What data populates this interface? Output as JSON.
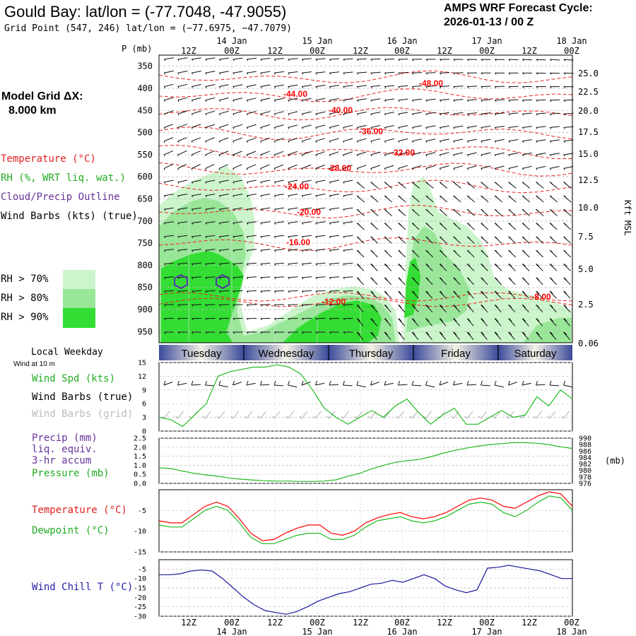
{
  "header": {
    "title": "Gould Bay:  lat/lon = (-77.7048, -47.9055)",
    "subtitle": "Grid Point (547, 246) lat/lon = (−77.6975, −47.7079)",
    "cycle_line1": "AMPS WRF Forecast Cycle:",
    "cycle_line2": "2026-01-13 / 00  Z"
  },
  "left_panel": {
    "grid_label": "Model Grid ΔX:",
    "grid_value": "8.000 km",
    "legend": [
      {
        "text": "Temperature (°C)",
        "color": "#e02020"
      },
      {
        "text": "RH (%, WRT liq. wat.)",
        "color": "#22aa22"
      },
      {
        "text": "Cloud/Precip Outline",
        "color": "#663399"
      },
      {
        "text": "Wind Barbs (kts) (true)",
        "color": "#000000"
      }
    ],
    "rh_legend": [
      {
        "text": "RH > 70%",
        "color": "#ccf5cc"
      },
      {
        "text": "RH > 80%",
        "color": "#99e699"
      },
      {
        "text": "RH > 90%",
        "color": "#33dd33"
      }
    ],
    "weekday_label": "Local Weekday",
    "wind_at": "Wind at 10 m",
    "wind_legend": [
      {
        "text": "Wind Spd (kts)",
        "color": "#22aa22"
      },
      {
        "text": "Wind Barbs (true)",
        "color": "#000000"
      },
      {
        "text": "Wind Barbs (grid)",
        "color": "#bbbbbb"
      }
    ],
    "precip_legend": [
      {
        "text": "Precip (mm)",
        "color": "#663399"
      },
      {
        "text": "liq. equiv.",
        "color": "#663399"
      },
      {
        "text": "3-hr accum",
        "color": "#663399"
      },
      {
        "text": "Pressure (mb)",
        "color": "#22aa22"
      }
    ],
    "temp_legend": [
      {
        "text": "Temperature (°C)",
        "color": "#e02020"
      },
      {
        "text": "Dewpoint (°C)",
        "color": "#22aa22"
      }
    ],
    "chill_legend": [
      {
        "text": "Wind Chill T (°C)",
        "color": "#2222aa"
      }
    ]
  },
  "time_axis": {
    "tick_labels": [
      "12Z",
      "00Z",
      "12Z",
      "00Z",
      "12Z",
      "00Z",
      "12Z",
      "00Z",
      "12Z",
      "00Z"
    ],
    "date_labels": [
      "14 Jan",
      "15 Jan",
      "16 Jan",
      "17 Jan",
      "18 Jan"
    ]
  },
  "weekdays": [
    "Tuesday",
    "Wednesday",
    "Thursday",
    "Friday",
    "Saturday"
  ],
  "colors": {
    "temp": "#ff0000",
    "green": "#22bb22",
    "blue": "#1a1aa0",
    "purple": "#663399",
    "rh70": "#ccf5cc",
    "rh80": "#99e699",
    "rh90": "#33dd33"
  },
  "chart_data": [
    {
      "type": "heatmap",
      "ylabel": "P (mb)",
      "y2label": "Kft MSL",
      "pressure_ticks": [
        350,
        400,
        450,
        500,
        550,
        600,
        650,
        700,
        750,
        800,
        850,
        900,
        950
      ],
      "height_ticks": [
        "25.0",
        "22.5",
        "20.0",
        "17.5",
        "15.0",
        "12.5",
        "10.0",
        "7.5",
        "5.0",
        "2.5",
        "0.06"
      ],
      "isotherm_labels": [
        "-48.00",
        "-44.00",
        "-40.00",
        "-36.00",
        "-32.00",
        "-28.00",
        "-24.00",
        "-20.00",
        "-16.00",
        "-12.00",
        "-8.00"
      ]
    },
    {
      "type": "line",
      "name": "Wind Spd (kts)",
      "yticks": [
        0,
        3,
        6,
        9,
        12,
        15
      ],
      "ylim": [
        0,
        15
      ],
      "values": [
        3,
        2.5,
        1,
        3.5,
        6,
        12,
        13,
        13.5,
        14,
        14,
        14.5,
        14,
        12.5,
        9,
        5,
        3,
        1.5,
        3,
        4.5,
        3,
        5.5,
        7,
        4,
        1.5,
        3.5,
        5,
        1.5,
        1.5,
        3,
        4.5,
        3,
        3.5,
        7.5,
        5.5,
        9,
        7
      ]
    },
    {
      "type": "line",
      "name": "Pressure (mb)",
      "y2ticks": [
        990,
        988,
        986,
        984,
        982,
        980,
        978,
        976
      ],
      "y2lim": [
        976,
        990
      ],
      "yticks": [
        "2.5",
        "2.0",
        "1.5",
        "1.0",
        "0.5",
        "0.0"
      ],
      "ylim": [
        0,
        2.5
      ],
      "values": [
        980.8,
        980.6,
        979.8,
        979.1,
        978.6,
        978.2,
        977.6,
        977.3,
        977.0,
        976.8,
        976.7,
        976.7,
        976.6,
        976.6,
        976.7,
        977.1,
        978.2,
        979.1,
        980.5,
        981.6,
        982.5,
        983.0,
        983.4,
        984.2,
        985.3,
        986.2,
        986.9,
        987.5,
        988.0,
        988.3,
        988.6,
        988.6,
        988.4,
        988.0,
        987.3,
        986.8
      ]
    },
    {
      "type": "line",
      "yticks": [
        -5,
        -10,
        -15
      ],
      "ylim": [
        -15,
        0
      ],
      "series": [
        {
          "name": "Temperature (°C)",
          "values": [
            -7.5,
            -8,
            -8,
            -6,
            -4,
            -3,
            -4,
            -7,
            -10.5,
            -12.3,
            -12,
            -10.5,
            -9.3,
            -8.5,
            -8.5,
            -10.5,
            -11,
            -10,
            -8,
            -6.8,
            -6,
            -5.5,
            -6.5,
            -7,
            -6.5,
            -5.5,
            -4,
            -2.5,
            -2,
            -2.5,
            -4,
            -4.5,
            -3,
            -1.5,
            -0.5,
            -1,
            -4
          ]
        },
        {
          "name": "Dewpoint (°C)",
          "values": [
            -8.5,
            -9,
            -9,
            -7,
            -5,
            -4,
            -5,
            -8,
            -11.5,
            -13,
            -13,
            -12,
            -11,
            -10.5,
            -10.5,
            -12,
            -12,
            -11,
            -9,
            -7.5,
            -7,
            -6.5,
            -7.5,
            -8,
            -7.5,
            -6.5,
            -5,
            -3.5,
            -3,
            -3.5,
            -5.5,
            -6.5,
            -5,
            -3,
            -1.5,
            -2,
            -5
          ]
        }
      ]
    },
    {
      "type": "line",
      "name": "Wind Chill T (°C)",
      "yticks": [
        -5,
        -10,
        -15,
        -20,
        -25,
        -30
      ],
      "ylim": [
        -30,
        0
      ],
      "values": [
        -8,
        -8,
        -7.5,
        -6,
        -5.5,
        -6,
        -10,
        -15,
        -20,
        -24,
        -27,
        -28,
        -29,
        -27.5,
        -25,
        -22,
        -20,
        -18,
        -17,
        -15,
        -13,
        -12.5,
        -11,
        -12,
        -10,
        -8,
        -10,
        -14,
        -16,
        -17.5,
        -16,
        -4.5,
        -4,
        -3,
        -4,
        -5,
        -6,
        -8,
        -10,
        -10
      ]
    }
  ]
}
